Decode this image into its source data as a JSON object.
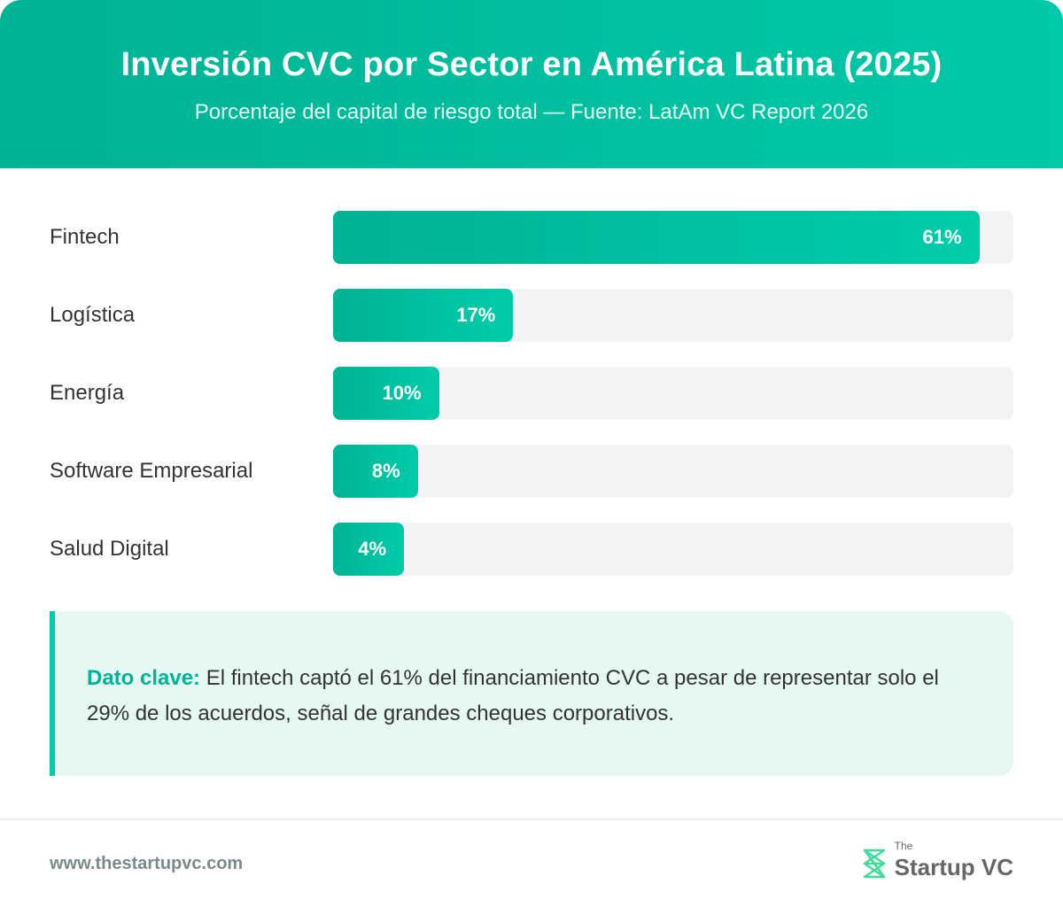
{
  "header": {
    "title": "Inversión CVC por Sector en América Latina (2025)",
    "subtitle": "Porcentaje del capital de riesgo total — Fuente: LatAm VC Report 2026"
  },
  "chart_data": {
    "type": "bar",
    "orientation": "horizontal",
    "title": "Inversión CVC por Sector en América Latina (2025)",
    "subtitle": "Porcentaje del capital de riesgo total — Fuente: LatAm VC Report 2026",
    "categories": [
      "Fintech",
      "Logística",
      "Energía",
      "Software Empresarial",
      "Salud Digital"
    ],
    "values": [
      61,
      17,
      10,
      8,
      4
    ],
    "value_labels": [
      "61%",
      "17%",
      "10%",
      "8%",
      "4%"
    ],
    "unit": "%",
    "colors": {
      "bar": "#00b394",
      "bar_end": "#00ccaa",
      "track": "#f4f4f4"
    }
  },
  "insight": {
    "label": "Dato clave:",
    "text": "El fintech captó el 61% del financiamiento CVC a pesar de representar solo el 29% de los acuerdos, señal de grandes cheques corporativos."
  },
  "footer": {
    "url": "www.thestartupvc.com",
    "logo_small": "The",
    "logo_main": "Startup VC"
  }
}
